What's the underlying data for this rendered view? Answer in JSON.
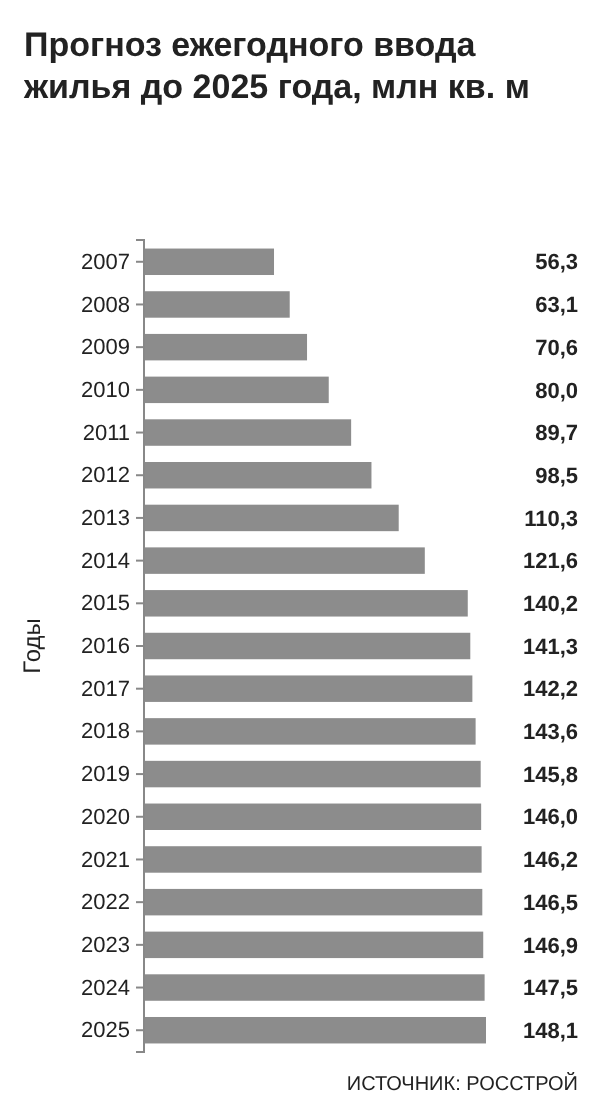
{
  "chart_data": {
    "type": "bar",
    "orientation": "horizontal",
    "title": "Прогноз ежегодного ввода жилья до 2025 года, млн кв. м",
    "ylabel": "Годы",
    "categories": [
      "2007",
      "2008",
      "2009",
      "2010",
      "2011",
      "2012",
      "2013",
      "2014",
      "2015",
      "2016",
      "2017",
      "2018",
      "2019",
      "2020",
      "2021",
      "2022",
      "2023",
      "2024",
      "2025"
    ],
    "values": [
      56.3,
      63.1,
      70.6,
      80.0,
      89.7,
      98.5,
      110.3,
      121.6,
      140.2,
      141.3,
      142.2,
      143.6,
      145.8,
      146.0,
      146.2,
      146.5,
      146.9,
      147.5,
      148.1
    ],
    "value_labels": [
      "56,3",
      "63,1",
      "70,6",
      "80,0",
      "89,7",
      "98,5",
      "110,3",
      "121,6",
      "140,2",
      "141,3",
      "142,2",
      "143,6",
      "145,8",
      "146,0",
      "146,2",
      "146,5",
      "146,9",
      "147,5",
      "148,1"
    ],
    "color": "#8c8c8c",
    "annotations": [
      "ИСТОЧНИК: РОССТРОЙ"
    ]
  }
}
